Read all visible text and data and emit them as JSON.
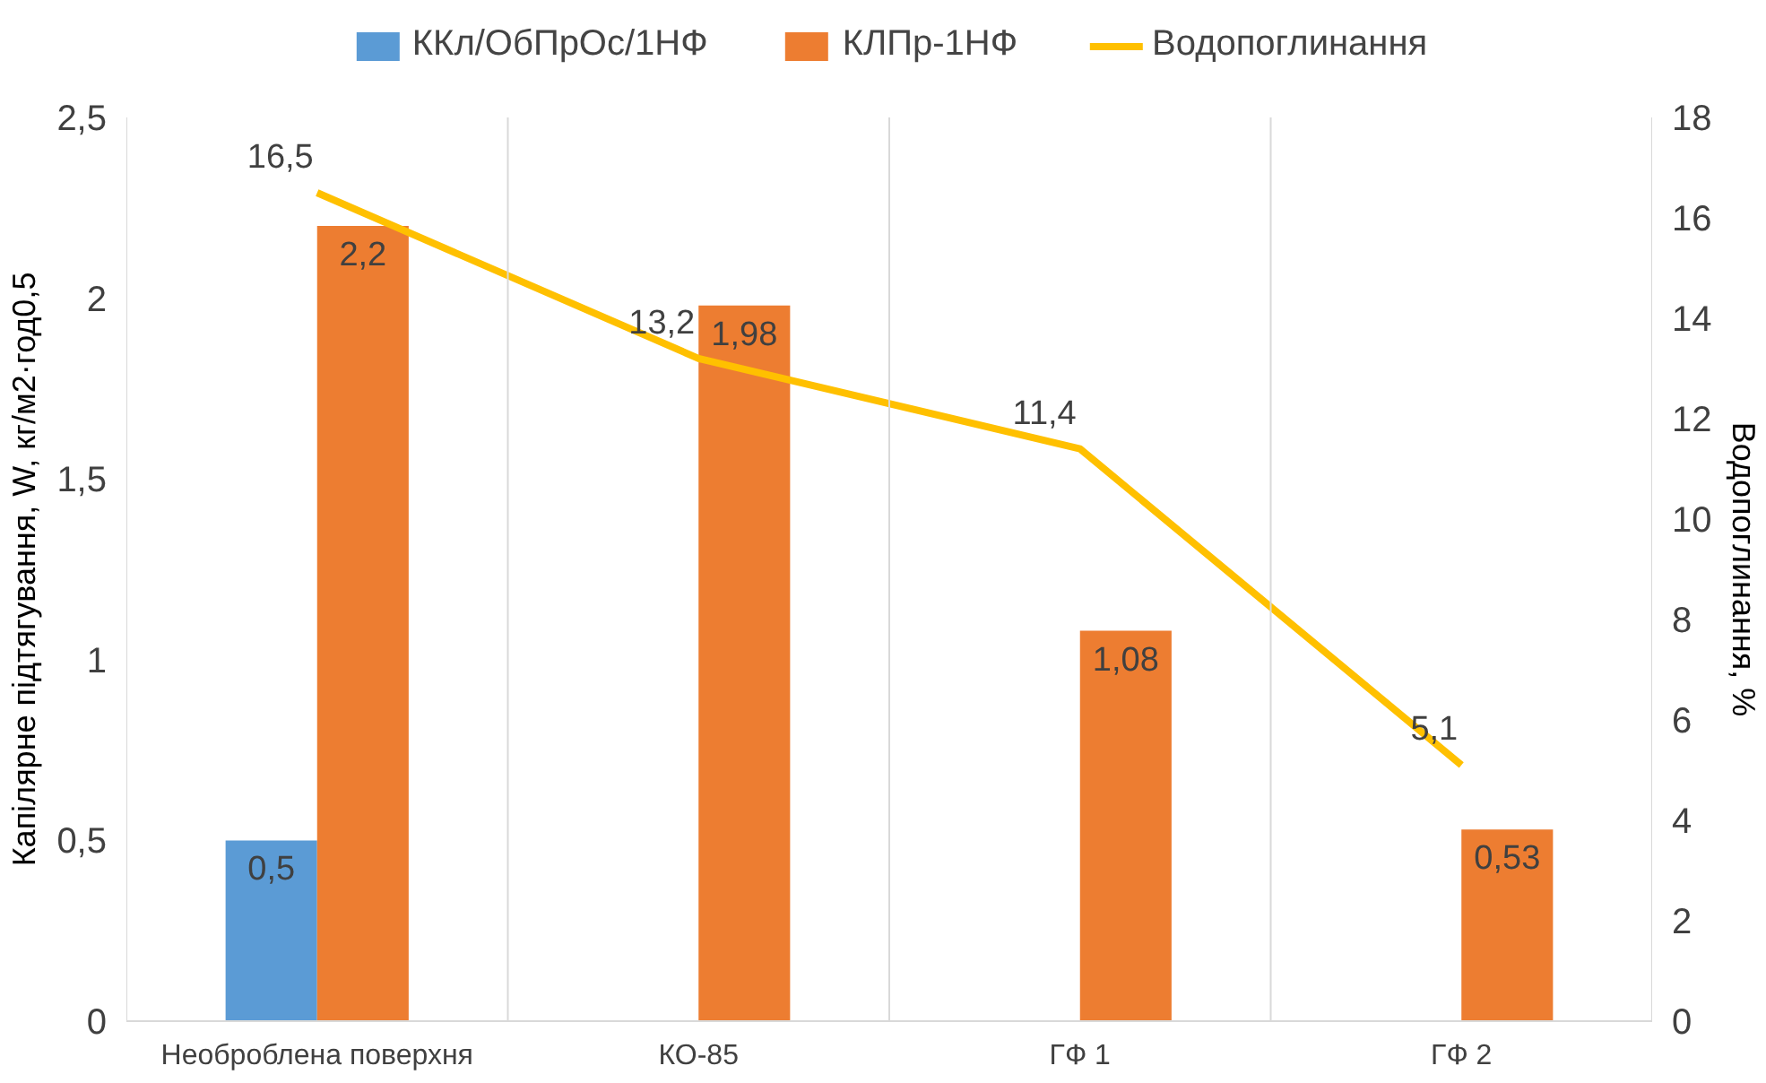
{
  "chart_data": {
    "type": "bar",
    "categories": [
      "Необроблена поверхня",
      "КО-85",
      "ГФ 1",
      "ГФ 2"
    ],
    "ylabel": "Капілярне підтягування, W, кг/м2·год0,5",
    "y2label": "Водопоглинання, %",
    "ylim": [
      0,
      2.5
    ],
    "yticks": [
      0,
      {
        "value": 0.5,
        "label": "0,5"
      },
      1,
      {
        "value": 1.5,
        "label": "1,5"
      },
      2,
      {
        "value": 2.5,
        "label": "2,5"
      }
    ],
    "y2lim": [
      0,
      18
    ],
    "y2ticks": [
      0,
      2,
      4,
      6,
      8,
      10,
      12,
      14,
      16,
      18
    ],
    "grid": "x",
    "legend": "top",
    "series": [
      {
        "name": "ККл/ОбПрОс/1НФ",
        "color": "#5b9bd5",
        "values": [
          0.5,
          null,
          null,
          null
        ],
        "value_labels": [
          "0,5",
          null,
          null,
          null
        ]
      },
      {
        "name": "КЛПр-1НФ",
        "color": "#ed7d31",
        "values": [
          2.2,
          1.98,
          1.08,
          0.53
        ],
        "value_labels": [
          "2,2",
          "1,98",
          "1,08",
          "0,53"
        ]
      },
      {
        "name": "Водопоглинання",
        "type": "line",
        "axis": "y2",
        "color": "#ffc000",
        "values": [
          16.5,
          13.2,
          11.4,
          5.1
        ],
        "value_labels": [
          "16,5",
          "13,2",
          "11,4",
          "5,1"
        ]
      }
    ]
  }
}
